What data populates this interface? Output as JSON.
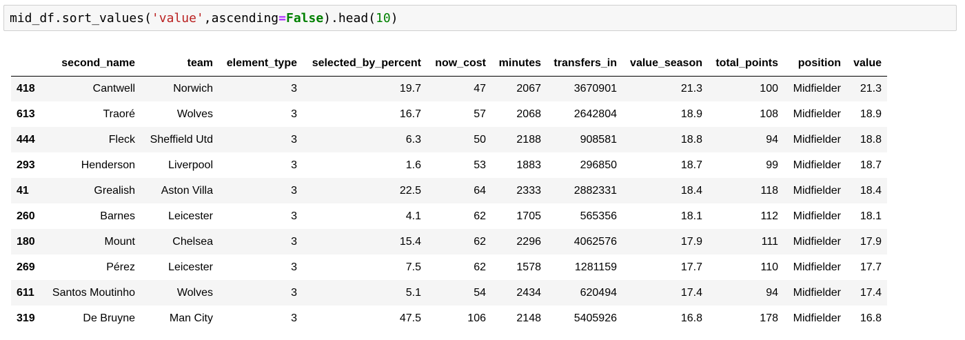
{
  "cell": {
    "code_parts": {
      "p1": "mid_df.sort_values(",
      "p2": "'value'",
      "p3": ",ascending",
      "p4": "=",
      "p5": "False",
      "p6": ").head(",
      "p7": "10",
      "p8": ")"
    }
  },
  "table": {
    "index_header": "",
    "columns": [
      "second_name",
      "team",
      "element_type",
      "selected_by_percent",
      "now_cost",
      "minutes",
      "transfers_in",
      "value_season",
      "total_points",
      "position",
      "value"
    ],
    "rows": [
      {
        "index": "418",
        "cells": [
          "Cantwell",
          "Norwich",
          "3",
          "19.7",
          "47",
          "2067",
          "3670901",
          "21.3",
          "100",
          "Midfielder",
          "21.3"
        ]
      },
      {
        "index": "613",
        "cells": [
          "Traoré",
          "Wolves",
          "3",
          "16.7",
          "57",
          "2068",
          "2642804",
          "18.9",
          "108",
          "Midfielder",
          "18.9"
        ]
      },
      {
        "index": "444",
        "cells": [
          "Fleck",
          "Sheffield Utd",
          "3",
          "6.3",
          "50",
          "2188",
          "908581",
          "18.8",
          "94",
          "Midfielder",
          "18.8"
        ]
      },
      {
        "index": "293",
        "cells": [
          "Henderson",
          "Liverpool",
          "3",
          "1.6",
          "53",
          "1883",
          "296850",
          "18.7",
          "99",
          "Midfielder",
          "18.7"
        ]
      },
      {
        "index": "41",
        "cells": [
          "Grealish",
          "Aston Villa",
          "3",
          "22.5",
          "64",
          "2333",
          "2882331",
          "18.4",
          "118",
          "Midfielder",
          "18.4"
        ]
      },
      {
        "index": "260",
        "cells": [
          "Barnes",
          "Leicester",
          "3",
          "4.1",
          "62",
          "1705",
          "565356",
          "18.1",
          "112",
          "Midfielder",
          "18.1"
        ]
      },
      {
        "index": "180",
        "cells": [
          "Mount",
          "Chelsea",
          "3",
          "15.4",
          "62",
          "2296",
          "4062576",
          "17.9",
          "111",
          "Midfielder",
          "17.9"
        ]
      },
      {
        "index": "269",
        "cells": [
          "Pérez",
          "Leicester",
          "3",
          "7.5",
          "62",
          "1578",
          "1281159",
          "17.7",
          "110",
          "Midfielder",
          "17.7"
        ]
      },
      {
        "index": "611",
        "cells": [
          "Santos Moutinho",
          "Wolves",
          "3",
          "5.1",
          "54",
          "2434",
          "620494",
          "17.4",
          "94",
          "Midfielder",
          "17.4"
        ]
      },
      {
        "index": "319",
        "cells": [
          "De Bruyne",
          "Man City",
          "3",
          "47.5",
          "106",
          "2148",
          "5405926",
          "16.8",
          "178",
          "Midfielder",
          "16.8"
        ]
      }
    ]
  }
}
